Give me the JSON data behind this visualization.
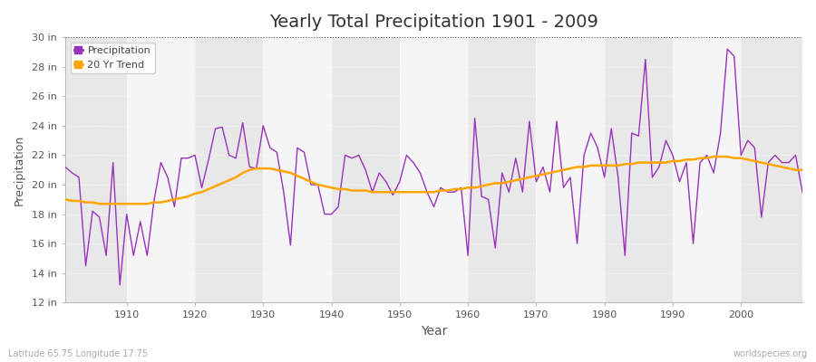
{
  "title": "Yearly Total Precipitation 1901 - 2009",
  "xlabel": "Year",
  "ylabel": "Precipitation",
  "footnote_left": "Latitude 65.75 Longitude 17.75",
  "footnote_right": "worldspecies.org",
  "precip_color": "#9933BB",
  "trend_color": "#FFA500",
  "background_color": "#FFFFFF",
  "plot_bg_color": "#EFEFEF",
  "band_color1": "#E8E8E8",
  "band_color2": "#F5F5F5",
  "ylim": [
    12,
    30
  ],
  "yticks": [
    12,
    14,
    16,
    18,
    20,
    22,
    24,
    26,
    28,
    30
  ],
  "ytick_labels": [
    "12 in",
    "14 in",
    "16 in",
    "18 in",
    "20 in",
    "22 in",
    "24 in",
    "26 in",
    "28 in",
    "30 in"
  ],
  "xticks": [
    1910,
    1920,
    1930,
    1940,
    1950,
    1960,
    1970,
    1980,
    1990,
    2000
  ],
  "years": [
    1901,
    1902,
    1903,
    1904,
    1905,
    1906,
    1907,
    1908,
    1909,
    1910,
    1911,
    1912,
    1913,
    1914,
    1915,
    1916,
    1917,
    1918,
    1919,
    1920,
    1921,
    1922,
    1923,
    1924,
    1925,
    1926,
    1927,
    1928,
    1929,
    1930,
    1931,
    1932,
    1933,
    1934,
    1935,
    1936,
    1937,
    1938,
    1939,
    1940,
    1941,
    1942,
    1943,
    1944,
    1945,
    1946,
    1947,
    1948,
    1949,
    1950,
    1951,
    1952,
    1953,
    1954,
    1955,
    1956,
    1957,
    1958,
    1959,
    1960,
    1961,
    1962,
    1963,
    1964,
    1965,
    1966,
    1967,
    1968,
    1969,
    1970,
    1971,
    1972,
    1973,
    1974,
    1975,
    1976,
    1977,
    1978,
    1979,
    1980,
    1981,
    1982,
    1983,
    1984,
    1985,
    1986,
    1987,
    1988,
    1989,
    1990,
    1991,
    1992,
    1993,
    1994,
    1995,
    1996,
    1997,
    1998,
    1999,
    2000,
    2001,
    2002,
    2003,
    2004,
    2005,
    2006,
    2007,
    2008,
    2009
  ],
  "precipitation": [
    21.2,
    20.8,
    20.5,
    14.5,
    18.2,
    17.8,
    15.2,
    21.5,
    13.2,
    18.0,
    15.2,
    17.5,
    15.2,
    18.9,
    21.5,
    20.5,
    18.5,
    21.8,
    21.8,
    22.0,
    19.8,
    21.7,
    23.8,
    23.9,
    22.0,
    21.8,
    24.2,
    21.2,
    21.1,
    24.0,
    22.5,
    22.2,
    19.5,
    15.9,
    22.5,
    22.2,
    20.0,
    20.0,
    18.0,
    18.0,
    18.5,
    22.0,
    21.8,
    22.0,
    21.0,
    19.5,
    20.8,
    20.2,
    19.3,
    20.2,
    22.0,
    21.5,
    20.8,
    19.5,
    18.5,
    19.8,
    19.5,
    19.5,
    19.8,
    15.2,
    24.5,
    19.2,
    19.0,
    15.7,
    20.8,
    19.5,
    21.8,
    19.5,
    24.3,
    20.2,
    21.2,
    19.5,
    24.3,
    19.8,
    20.5,
    16.0,
    22.0,
    23.5,
    22.5,
    20.5,
    23.8,
    20.5,
    15.2,
    23.5,
    23.3,
    28.5,
    20.5,
    21.2,
    23.0,
    22.0,
    20.2,
    21.5,
    16.0,
    21.5,
    22.0,
    20.8,
    23.5,
    29.2,
    28.7,
    22.0,
    23.0,
    22.5,
    17.8,
    21.5,
    22.0,
    21.5,
    21.5,
    22.0,
    19.5
  ],
  "trend": [
    19.0,
    18.9,
    18.9,
    18.8,
    18.8,
    18.7,
    18.7,
    18.7,
    18.7,
    18.7,
    18.7,
    18.7,
    18.7,
    18.8,
    18.8,
    18.9,
    19.0,
    19.1,
    19.2,
    19.4,
    19.5,
    19.7,
    19.9,
    20.1,
    20.3,
    20.5,
    20.8,
    21.0,
    21.1,
    21.1,
    21.1,
    21.0,
    20.9,
    20.8,
    20.6,
    20.4,
    20.2,
    20.0,
    19.9,
    19.8,
    19.7,
    19.7,
    19.6,
    19.6,
    19.6,
    19.5,
    19.5,
    19.5,
    19.5,
    19.5,
    19.5,
    19.5,
    19.5,
    19.5,
    19.5,
    19.6,
    19.6,
    19.7,
    19.7,
    19.8,
    19.8,
    19.9,
    20.0,
    20.1,
    20.1,
    20.2,
    20.3,
    20.4,
    20.5,
    20.6,
    20.7,
    20.8,
    20.9,
    21.0,
    21.1,
    21.2,
    21.2,
    21.3,
    21.3,
    21.3,
    21.3,
    21.3,
    21.4,
    21.4,
    21.5,
    21.5,
    21.5,
    21.5,
    21.5,
    21.6,
    21.6,
    21.7,
    21.7,
    21.8,
    21.8,
    21.9,
    21.9,
    21.9,
    21.8,
    21.8,
    21.7,
    21.6,
    21.5,
    21.4,
    21.3,
    21.2,
    21.1,
    21.0,
    21.0
  ]
}
